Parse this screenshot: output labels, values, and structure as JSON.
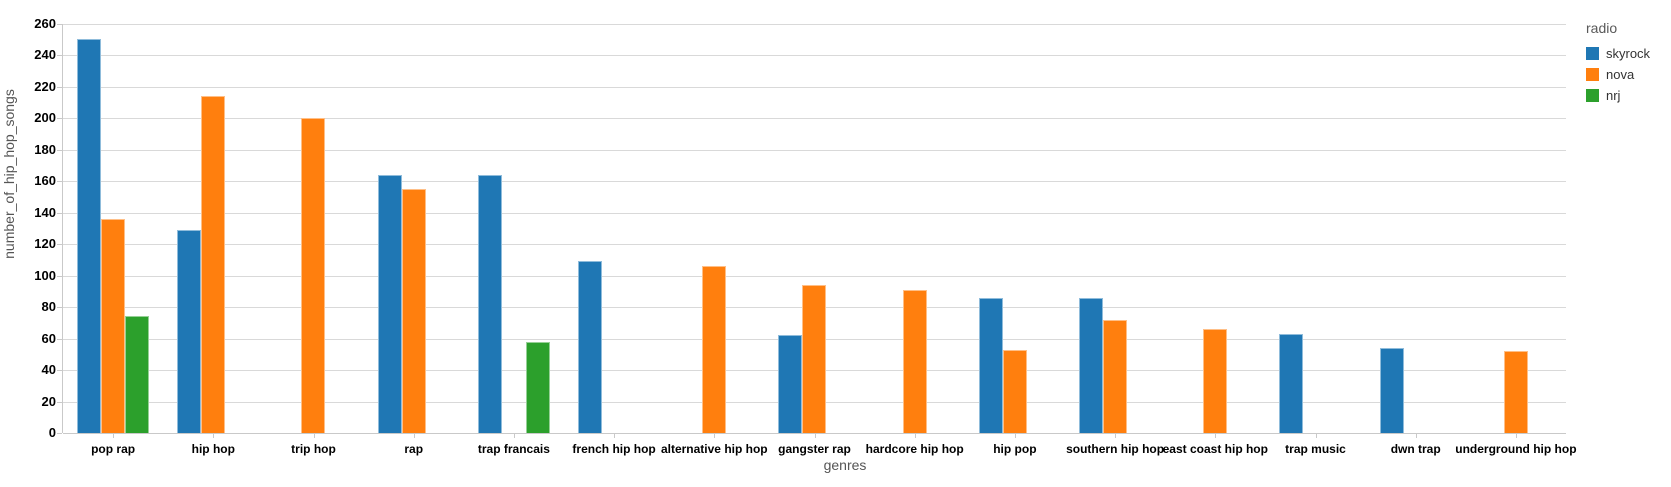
{
  "chart_data": {
    "type": "bar",
    "title": "",
    "xlabel": "genres",
    "ylabel": "number_of_hip_hop_songs",
    "ylim": [
      0,
      260
    ],
    "yticks": [
      0,
      20,
      40,
      60,
      80,
      100,
      120,
      140,
      160,
      180,
      200,
      220,
      240,
      260
    ],
    "grid": true,
    "legend_title": "radio",
    "legend_position": "top-right-outside",
    "categories": [
      "pop rap",
      "hip hop",
      "trip hop",
      "rap",
      "trap francais",
      "french hip hop",
      "alternative hip hop",
      "gangster rap",
      "hardcore hip hop",
      "hip pop",
      "southern hip hop",
      "east coast hip hop",
      "trap music",
      "dwn trap",
      "underground hip hop"
    ],
    "series": [
      {
        "name": "skyrock",
        "color": "#1f77b4",
        "edge_color": "#8fbcdb",
        "values": [
          250,
          129,
          null,
          164,
          164,
          109,
          null,
          62,
          null,
          86,
          86,
          null,
          63,
          54,
          null
        ]
      },
      {
        "name": "nova",
        "color": "#ff7f0e",
        "edge_color": "#ffbf87",
        "values": [
          136,
          214,
          200,
          155,
          null,
          null,
          106,
          94,
          91,
          53,
          72,
          66,
          null,
          null,
          52
        ]
      },
      {
        "name": "nrj",
        "color": "#2ca02c",
        "edge_color": "#96d096",
        "values": [
          74,
          null,
          null,
          null,
          58,
          null,
          null,
          null,
          null,
          null,
          null,
          null,
          null,
          null,
          null
        ]
      }
    ]
  },
  "style_colors": {
    "gridline": "#d9d9d9",
    "axis_line": "#c9c9c9",
    "tick_label": "#000000",
    "axis_title": "#555555",
    "legend_title": "#595959",
    "legend_label": "#333333"
  }
}
